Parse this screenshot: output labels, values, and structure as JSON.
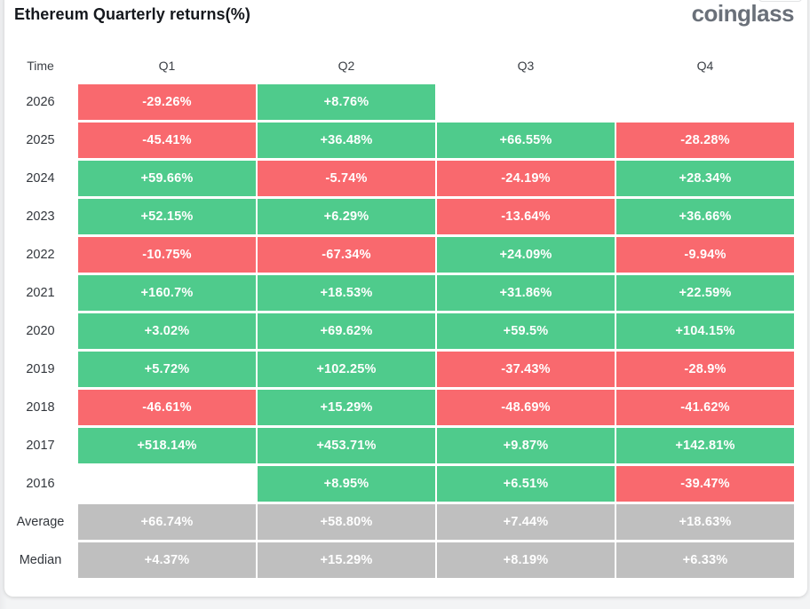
{
  "header": {
    "title": "Ethereum Quarterly returns(%)",
    "logo_text": "coinglass"
  },
  "colors": {
    "positive": "#4FCB8C",
    "negative": "#F9696E",
    "neutral": "#BFBFBF"
  },
  "table": {
    "columns": [
      "Time",
      "Q1",
      "Q2",
      "Q3",
      "Q4"
    ],
    "rows": [
      {
        "label": "2026",
        "type": "year",
        "values": [
          "-29.26%",
          "+8.76%",
          null,
          null
        ]
      },
      {
        "label": "2025",
        "type": "year",
        "values": [
          "-45.41%",
          "+36.48%",
          "+66.55%",
          "-28.28%"
        ]
      },
      {
        "label": "2024",
        "type": "year",
        "values": [
          "+59.66%",
          "-5.74%",
          "-24.19%",
          "+28.34%"
        ]
      },
      {
        "label": "2023",
        "type": "year",
        "values": [
          "+52.15%",
          "+6.29%",
          "-13.64%",
          "+36.66%"
        ]
      },
      {
        "label": "2022",
        "type": "year",
        "values": [
          "-10.75%",
          "-67.34%",
          "+24.09%",
          "-9.94%"
        ]
      },
      {
        "label": "2021",
        "type": "year",
        "values": [
          "+160.7%",
          "+18.53%",
          "+31.86%",
          "+22.59%"
        ]
      },
      {
        "label": "2020",
        "type": "year",
        "values": [
          "+3.02%",
          "+69.62%",
          "+59.5%",
          "+104.15%"
        ]
      },
      {
        "label": "2019",
        "type": "year",
        "values": [
          "+5.72%",
          "+102.25%",
          "-37.43%",
          "-28.9%"
        ]
      },
      {
        "label": "2018",
        "type": "year",
        "values": [
          "-46.61%",
          "+15.29%",
          "-48.69%",
          "-41.62%"
        ]
      },
      {
        "label": "2017",
        "type": "year",
        "values": [
          "+518.14%",
          "+453.71%",
          "+9.87%",
          "+142.81%"
        ]
      },
      {
        "label": "2016",
        "type": "year",
        "values": [
          null,
          "+8.95%",
          "+6.51%",
          "-39.47%"
        ]
      },
      {
        "label": "Average",
        "type": "stat",
        "values": [
          "+66.74%",
          "+58.80%",
          "+7.44%",
          "+18.63%"
        ]
      },
      {
        "label": "Median",
        "type": "stat",
        "values": [
          "+4.37%",
          "+15.29%",
          "+8.19%",
          "+6.33%"
        ]
      }
    ]
  },
  "chart_data": {
    "type": "table",
    "title": "Ethereum Quarterly returns(%)",
    "columns": [
      "Q1",
      "Q2",
      "Q3",
      "Q4"
    ],
    "row_labels": [
      "2026",
      "2025",
      "2024",
      "2023",
      "2022",
      "2021",
      "2020",
      "2019",
      "2018",
      "2017",
      "2016",
      "Average",
      "Median"
    ],
    "values": [
      [
        -29.26,
        8.76,
        null,
        null
      ],
      [
        -45.41,
        36.48,
        66.55,
        -28.28
      ],
      [
        59.66,
        -5.74,
        -24.19,
        28.34
      ],
      [
        52.15,
        6.29,
        -13.64,
        36.66
      ],
      [
        -10.75,
        -67.34,
        24.09,
        -9.94
      ],
      [
        160.7,
        18.53,
        31.86,
        22.59
      ],
      [
        3.02,
        69.62,
        59.5,
        104.15
      ],
      [
        5.72,
        102.25,
        -37.43,
        -28.9
      ],
      [
        -46.61,
        15.29,
        -48.69,
        -41.62
      ],
      [
        518.14,
        453.71,
        9.87,
        142.81
      ],
      [
        null,
        8.95,
        6.51,
        -39.47
      ],
      [
        66.74,
        58.8,
        7.44,
        18.63
      ],
      [
        4.37,
        15.29,
        8.19,
        6.33
      ]
    ],
    "unit": "%",
    "color_rule": "positive=green, negative=red, Average/Median rows=gray, missing=blank"
  }
}
